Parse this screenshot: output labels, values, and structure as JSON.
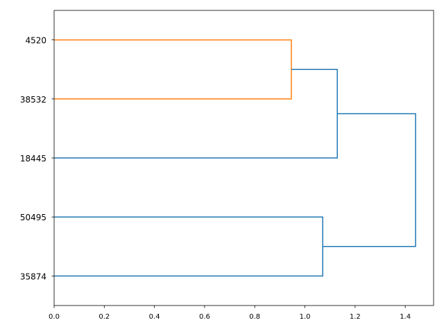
{
  "chart_data": {
    "type": "dendrogram",
    "orientation": "right",
    "title": "",
    "xlabel": "",
    "ylabel": "",
    "xlim": [
      0,
      1.513
    ],
    "x_ticks": [
      "0.0",
      "0.2",
      "0.4",
      "0.6",
      "0.8",
      "1.0",
      "1.2",
      "1.4"
    ],
    "leaves_top_to_bottom": [
      "4520",
      "38532",
      "18445",
      "50495",
      "35874"
    ],
    "links": [
      {
        "left": "4520",
        "right": "38532",
        "distance": 0.946,
        "color": "#ff7f0e"
      },
      {
        "left": "(4520, 38532)",
        "right": "18445",
        "distance": 1.129,
        "color": "#1f77b4"
      },
      {
        "left": "50495",
        "right": "35874",
        "distance": 1.071,
        "color": "#1f77b4"
      },
      {
        "left": "(4520, 38532, 18445)",
        "right": "(50495, 35874)",
        "distance": 1.441,
        "color": "#1f77b4"
      }
    ],
    "grid": false,
    "legend": "none"
  }
}
